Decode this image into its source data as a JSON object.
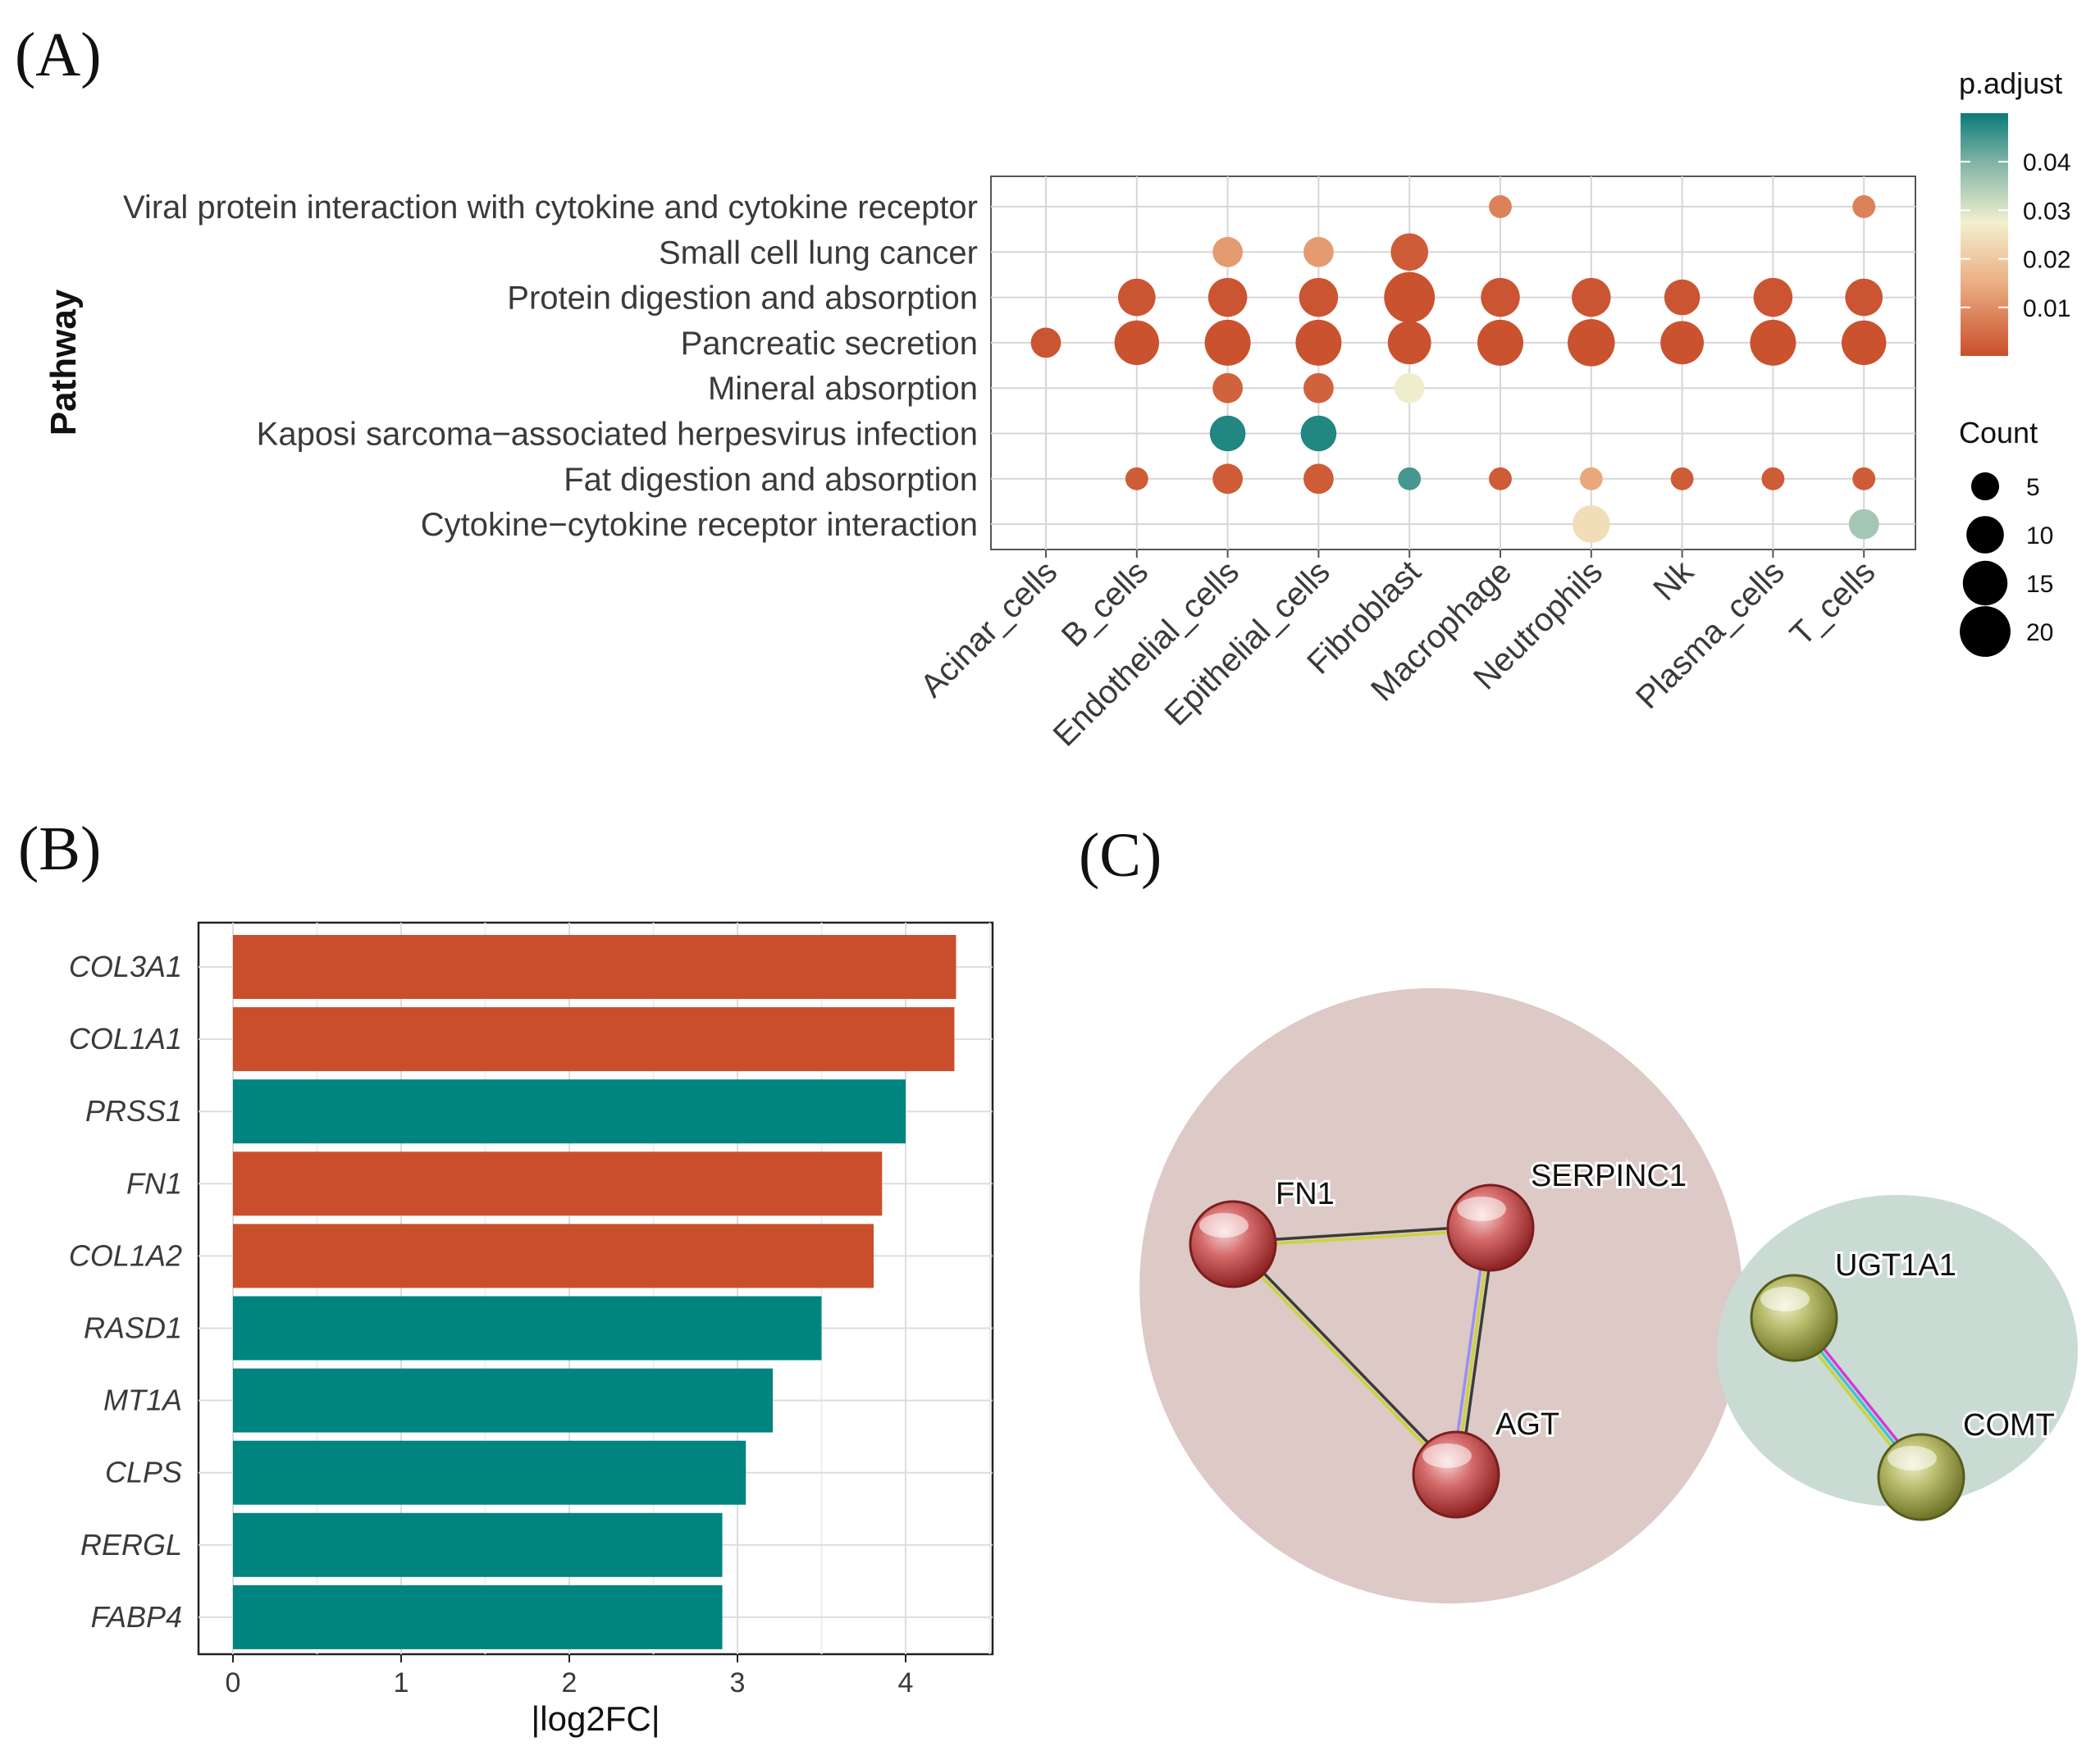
{
  "panel_labels": {
    "a": "(A)",
    "b": "(B)",
    "c": "(C)"
  },
  "colors": {
    "low": "#c94f2c",
    "mid": "#f3f0cf",
    "high": "#0b7b78",
    "bar_up": "#c94f2c",
    "bar_down": "#00847f"
  },
  "chart_data": [
    {
      "type": "scatter",
      "subtype": "dotplot",
      "title": "",
      "ylabel": "Pathway",
      "xlabel": "",
      "x_categories": [
        "Acinar_cells",
        "B_cells",
        "Endothelial_cells",
        "Epithelial_cells",
        "Fibroblast",
        "Macrophage",
        "Neutrophils",
        "Nk",
        "Plasma_cells",
        "T_cells"
      ],
      "y_categories": [
        "Viral protein interaction with cytokine and cytokine receptor",
        "Small cell lung cancer",
        "Protein digestion and absorption",
        "Pancreatic secretion",
        "Mineral absorption",
        "Kaposi sarcoma−associated herpesvirus infection",
        "Fat digestion and absorption",
        "Cytokine−cytokine receptor interaction"
      ],
      "points": [
        {
          "x": "Macrophage",
          "y": "Viral protein interaction with cytokine and cytokine receptor",
          "count": 3,
          "p_adjust": 0.008
        },
        {
          "x": "T_cells",
          "y": "Viral protein interaction with cytokine and cytokine receptor",
          "count": 3,
          "p_adjust": 0.008
        },
        {
          "x": "Endothelial_cells",
          "y": "Small cell lung cancer",
          "count": 6,
          "p_adjust": 0.012
        },
        {
          "x": "Epithelial_cells",
          "y": "Small cell lung cancer",
          "count": 6,
          "p_adjust": 0.012
        },
        {
          "x": "Fibroblast",
          "y": "Small cell lung cancer",
          "count": 10,
          "p_adjust": 0.002
        },
        {
          "x": "B_cells",
          "y": "Protein digestion and absorption",
          "count": 10,
          "p_adjust": 0.001
        },
        {
          "x": "Endothelial_cells",
          "y": "Protein digestion and absorption",
          "count": 11,
          "p_adjust": 0.001
        },
        {
          "x": "Epithelial_cells",
          "y": "Protein digestion and absorption",
          "count": 11,
          "p_adjust": 0.001
        },
        {
          "x": "Fibroblast",
          "y": "Protein digestion and absorption",
          "count": 20,
          "p_adjust": 0.0005
        },
        {
          "x": "Macrophage",
          "y": "Protein digestion and absorption",
          "count": 11,
          "p_adjust": 0.001
        },
        {
          "x": "Neutrophils",
          "y": "Protein digestion and absorption",
          "count": 11,
          "p_adjust": 0.001
        },
        {
          "x": "Nk",
          "y": "Protein digestion and absorption",
          "count": 9,
          "p_adjust": 0.001
        },
        {
          "x": "Plasma_cells",
          "y": "Protein digestion and absorption",
          "count": 11,
          "p_adjust": 0.001
        },
        {
          "x": "T_cells",
          "y": "Protein digestion and absorption",
          "count": 10,
          "p_adjust": 0.001
        },
        {
          "x": "Acinar_cells",
          "y": "Pancreatic secretion",
          "count": 6,
          "p_adjust": 0.001
        },
        {
          "x": "B_cells",
          "y": "Pancreatic secretion",
          "count": 15,
          "p_adjust": 0.0005
        },
        {
          "x": "Endothelial_cells",
          "y": "Pancreatic secretion",
          "count": 16,
          "p_adjust": 0.0005
        },
        {
          "x": "Epithelial_cells",
          "y": "Pancreatic secretion",
          "count": 16,
          "p_adjust": 0.0005
        },
        {
          "x": "Fibroblast",
          "y": "Pancreatic secretion",
          "count": 14,
          "p_adjust": 0.0005
        },
        {
          "x": "Macrophage",
          "y": "Pancreatic secretion",
          "count": 16,
          "p_adjust": 0.0005
        },
        {
          "x": "Neutrophils",
          "y": "Pancreatic secretion",
          "count": 17,
          "p_adjust": 0.0005
        },
        {
          "x": "Nk",
          "y": "Pancreatic secretion",
          "count": 14,
          "p_adjust": 0.0005
        },
        {
          "x": "Plasma_cells",
          "y": "Pancreatic secretion",
          "count": 16,
          "p_adjust": 0.0005
        },
        {
          "x": "T_cells",
          "y": "Pancreatic secretion",
          "count": 15,
          "p_adjust": 0.0005
        },
        {
          "x": "Endothelial_cells",
          "y": "Mineral absorption",
          "count": 6,
          "p_adjust": 0.003
        },
        {
          "x": "Epithelial_cells",
          "y": "Mineral absorption",
          "count": 6,
          "p_adjust": 0.003
        },
        {
          "x": "Fibroblast",
          "y": "Mineral absorption",
          "count": 6,
          "p_adjust": 0.028
        },
        {
          "x": "Endothelial_cells",
          "y": "Kaposi sarcoma−associated herpesvirus infection",
          "count": 9,
          "p_adjust": 0.048
        },
        {
          "x": "Epithelial_cells",
          "y": "Kaposi sarcoma−associated herpesvirus infection",
          "count": 9,
          "p_adjust": 0.048
        },
        {
          "x": "B_cells",
          "y": "Fat digestion and absorption",
          "count": 3,
          "p_adjust": 0.002
        },
        {
          "x": "Endothelial_cells",
          "y": "Fat digestion and absorption",
          "count": 6,
          "p_adjust": 0.002
        },
        {
          "x": "Epithelial_cells",
          "y": "Fat digestion and absorption",
          "count": 6,
          "p_adjust": 0.002
        },
        {
          "x": "Fibroblast",
          "y": "Fat digestion and absorption",
          "count": 3,
          "p_adjust": 0.045
        },
        {
          "x": "Macrophage",
          "y": "Fat digestion and absorption",
          "count": 3,
          "p_adjust": 0.002
        },
        {
          "x": "Neutrophils",
          "y": "Fat digestion and absorption",
          "count": 3,
          "p_adjust": 0.014
        },
        {
          "x": "Nk",
          "y": "Fat digestion and absorption",
          "count": 3,
          "p_adjust": 0.002
        },
        {
          "x": "Plasma_cells",
          "y": "Fat digestion and absorption",
          "count": 3,
          "p_adjust": 0.002
        },
        {
          "x": "T_cells",
          "y": "Fat digestion and absorption",
          "count": 3,
          "p_adjust": 0.002
        },
        {
          "x": "Neutrophils",
          "y": "Cytokine−cytokine receptor interaction",
          "count": 10,
          "p_adjust": 0.024
        },
        {
          "x": "T_cells",
          "y": "Cytokine−cytokine receptor interaction",
          "count": 6,
          "p_adjust": 0.036
        }
      ],
      "color_legend": {
        "title": "p.adjust",
        "ticks": [
          "0.04",
          "0.03",
          "0.02",
          "0.01"
        ],
        "tick_values": [
          0.04,
          0.03,
          0.02,
          0.01
        ],
        "range": [
          0,
          0.05
        ]
      },
      "size_legend": {
        "title": "Count",
        "ticks": [
          "5",
          "10",
          "15",
          "20"
        ],
        "tick_values": [
          5,
          10,
          15,
          20
        ]
      }
    },
    {
      "type": "bar",
      "orientation": "horizontal",
      "categories": [
        "COL3A1",
        "COL1A1",
        "PRSS1",
        "FN1",
        "COL1A2",
        "RASD1",
        "MT1A",
        "CLPS",
        "RERGL",
        "FABP4"
      ],
      "values": [
        4.3,
        4.29,
        4.0,
        3.86,
        3.81,
        3.5,
        3.21,
        3.05,
        2.91,
        2.91
      ],
      "direction": [
        "up",
        "up",
        "down",
        "up",
        "up",
        "down",
        "down",
        "down",
        "down",
        "down"
      ],
      "xlabel": "|log2FC|",
      "ylabel": "",
      "xlim": [
        0,
        4.5
      ],
      "xticks": [
        "0",
        "1",
        "2",
        "3",
        "4"
      ],
      "xtick_values": [
        0,
        1,
        2,
        3,
        4
      ]
    }
  ],
  "network": {
    "clusters": [
      {
        "id": "cluster-1",
        "color": "#ddc9c6"
      },
      {
        "id": "cluster-2",
        "color": "#cadbd4"
      }
    ],
    "nodes": [
      {
        "id": "FN1",
        "label": "FN1",
        "cluster": 1,
        "color": "#c95a5a"
      },
      {
        "id": "SERPINC1",
        "label": "SERPINC1",
        "cluster": 1,
        "color": "#c95a5a"
      },
      {
        "id": "AGT",
        "label": "AGT",
        "cluster": 1,
        "color": "#c95a5a"
      },
      {
        "id": "UGT1A1",
        "label": "UGT1A1",
        "cluster": 2,
        "color": "#a8ad5a"
      },
      {
        "id": "COMT",
        "label": "COMT",
        "cluster": 2,
        "color": "#a8ad5a"
      }
    ],
    "edges": [
      {
        "from": "FN1",
        "to": "SERPINC1",
        "evidence": [
          "#3b3b3b",
          "#c9d43a"
        ]
      },
      {
        "from": "FN1",
        "to": "AGT",
        "evidence": [
          "#3b3b3b",
          "#c9d43a"
        ]
      },
      {
        "from": "SERPINC1",
        "to": "AGT",
        "evidence": [
          "#3b3b3b",
          "#c9d43a",
          "#9a8ff0"
        ]
      },
      {
        "from": "UGT1A1",
        "to": "COMT",
        "evidence": [
          "#d23bd6",
          "#3ec3cf",
          "#c9d43a"
        ]
      }
    ]
  }
}
